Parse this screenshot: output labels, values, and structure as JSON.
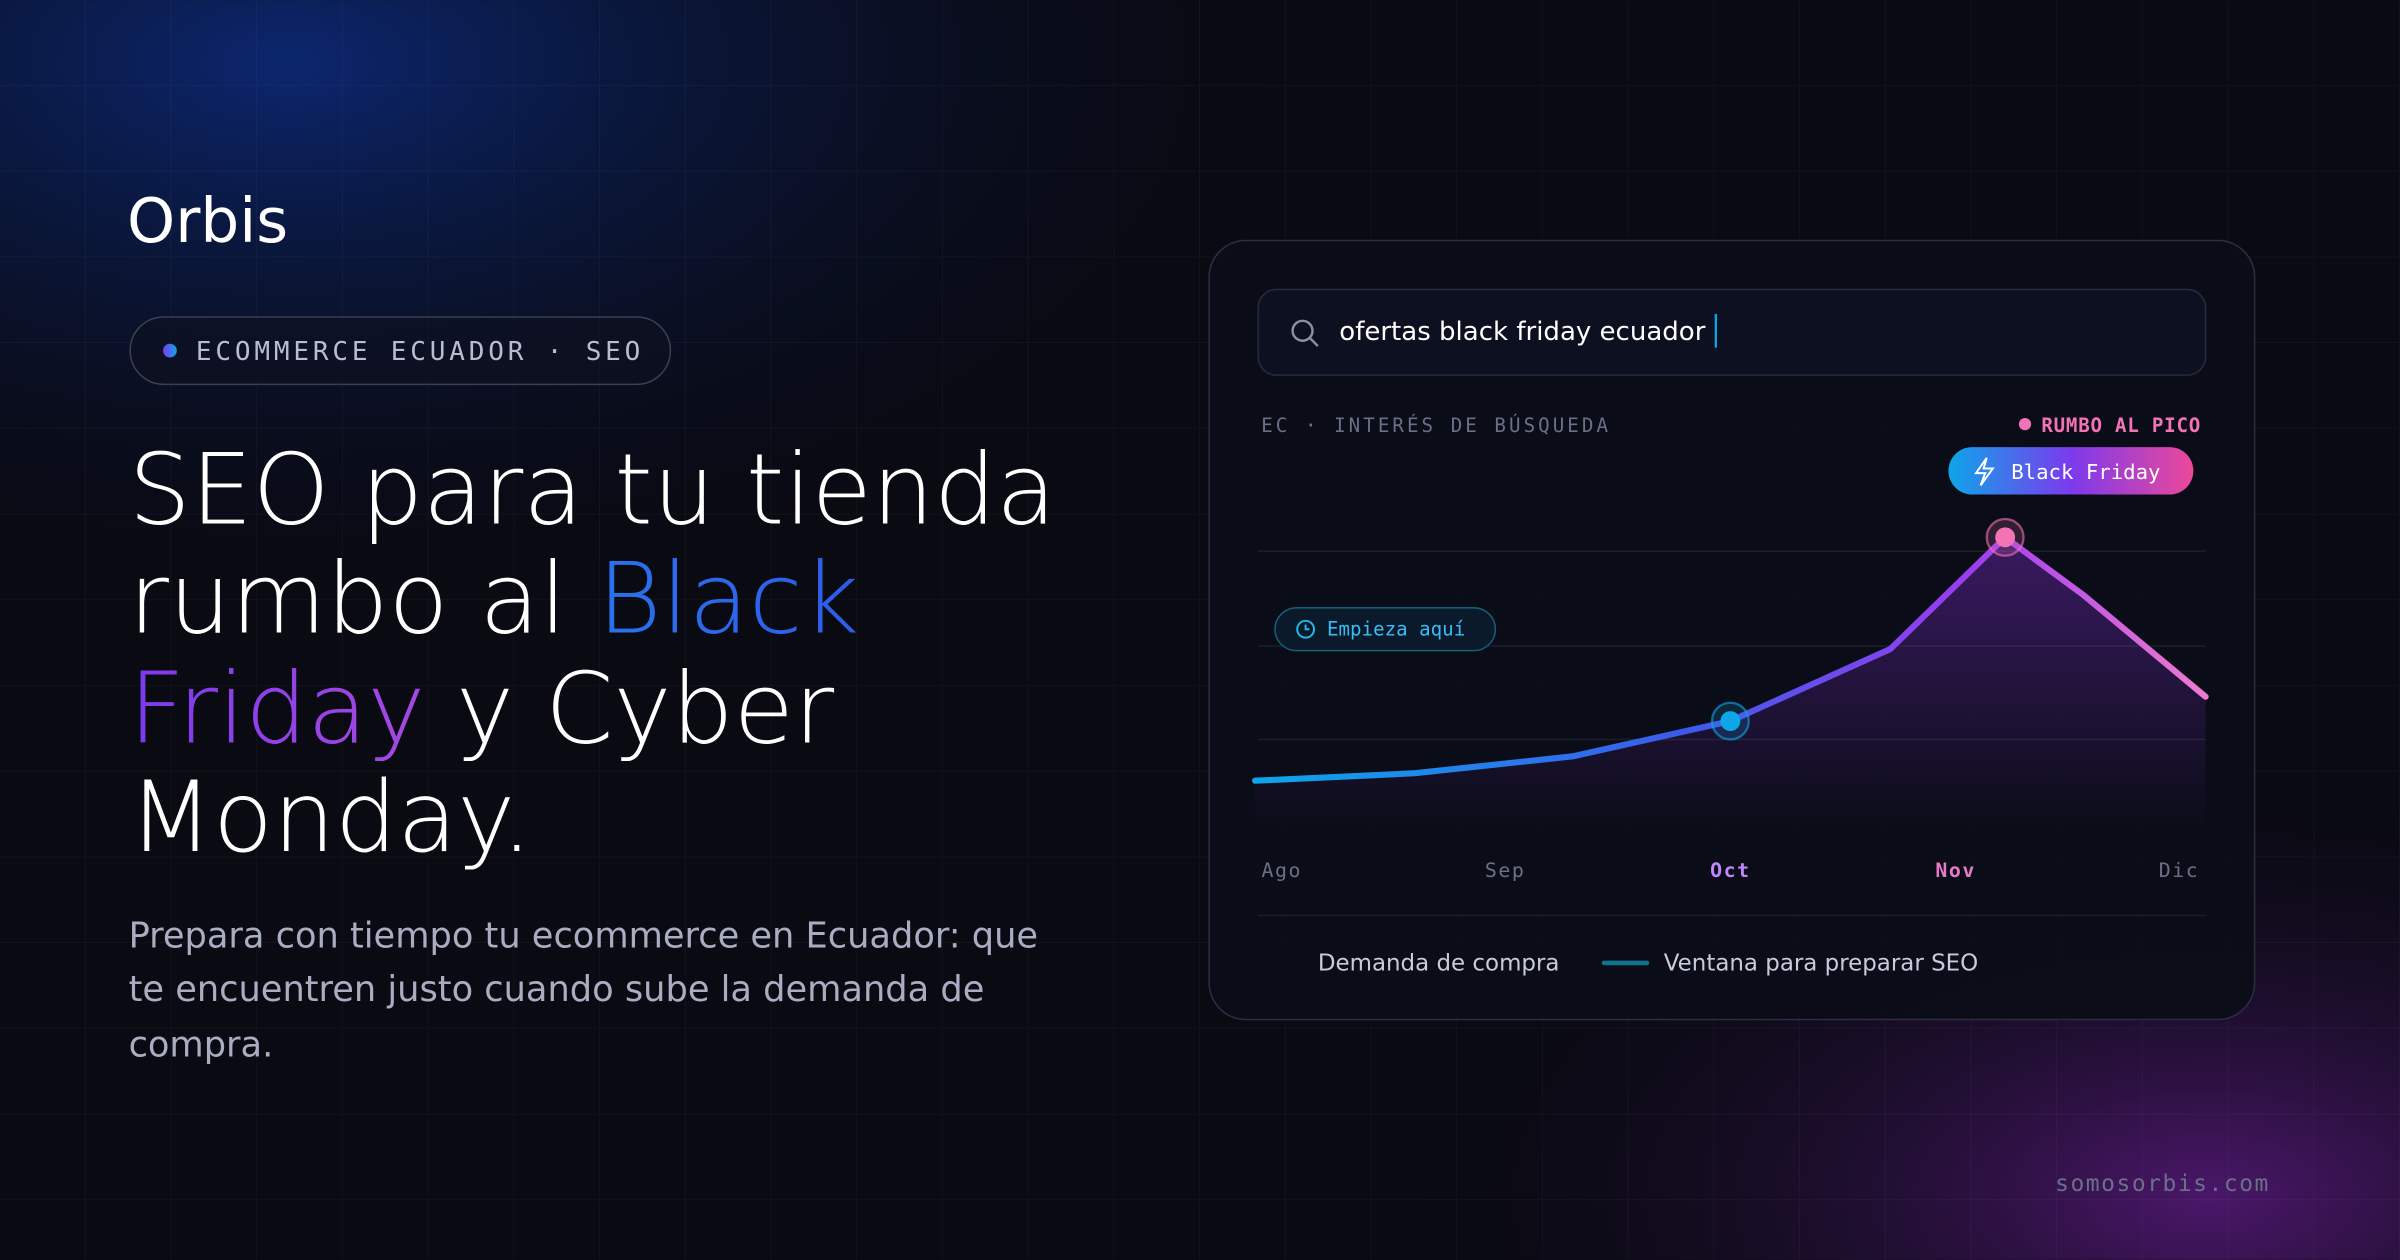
{
  "brand": "Orbis",
  "tag": "ECOMMERCE ECUADOR · SEO",
  "headline": {
    "line1": "SEO para tu tienda",
    "line2": "rumbo al",
    "highlight1": "Black",
    "highlight2": "Friday",
    "line3": "y Cyber",
    "line4": "Monday."
  },
  "subtitle": [
    "Prepara con tiempo tu ecommerce en Ecuador: que",
    "te encuentren justo cuando sube la demanda de",
    "compra."
  ],
  "search": "ofertas black friday ecuador",
  "footer": "somosorbis.com",
  "chart_data": {
    "type": "line",
    "label": "EC · INTERÉS DE BÚSQUEDA",
    "peak_label": "RUMBO AL PICO",
    "peak_badge": "Black Friday",
    "start_label": "Empieza aquí",
    "x": [
      -0.11,
      0.6,
      1.3,
      2,
      2.71,
      3.22,
      3.57,
      4.11
    ],
    "series": [
      {
        "name": "Demanda de compra",
        "color": "#8b5cf6",
        "values": [
          14.3,
          16.3,
          20.8,
          30.2,
          49.4,
          79.2,
          63.7,
          36.7
        ]
      }
    ],
    "xlim": [
      -0.11,
      4.11
    ],
    "xticks": [
      {
        "value": 0,
        "label": "Ago"
      },
      {
        "value": 1,
        "label": "Sep"
      },
      {
        "value": 2,
        "label": "Oct"
      },
      {
        "value": 3,
        "label": "Nov"
      },
      {
        "value": 4,
        "label": "Dic"
      }
    ],
    "ylim": [
      0,
      100
    ],
    "window_label": "Ventana para preparar SEO",
    "window_color": "#0e7490"
  }
}
